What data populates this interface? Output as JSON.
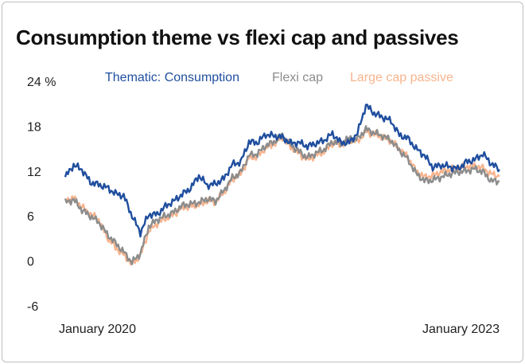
{
  "title": "Consumption theme vs flexi cap and passives",
  "chart_data": {
    "type": "line",
    "title": "Consumption theme vs flexi cap and passives",
    "xlabel": "",
    "ylabel": "",
    "y_unit": "%",
    "ylim": [
      -6,
      24
    ],
    "y_ticks": [
      "24 %",
      "18",
      "12",
      "6",
      "0",
      "-6"
    ],
    "x_tick_labels": [
      "January 2020",
      "January 2023"
    ],
    "x_range": [
      "2019-05",
      "2023-09"
    ],
    "grid": false,
    "legend_position": "top",
    "x": [
      "2019-05",
      "2019-06",
      "2019-07",
      "2019-08",
      "2019-09",
      "2019-10",
      "2019-11",
      "2019-12",
      "2020-01",
      "2020-02",
      "2020-03",
      "2020-04",
      "2020-05",
      "2020-06",
      "2020-07",
      "2020-08",
      "2020-09",
      "2020-10",
      "2020-11",
      "2020-12",
      "2021-01",
      "2021-02",
      "2021-03",
      "2021-04",
      "2021-05",
      "2021-06",
      "2021-07",
      "2021-08",
      "2021-09",
      "2021-10",
      "2021-11",
      "2021-12",
      "2022-01",
      "2022-02",
      "2022-03",
      "2022-04",
      "2022-05",
      "2022-06",
      "2022-07",
      "2022-08",
      "2022-09",
      "2022-10",
      "2022-11",
      "2022-12",
      "2023-01",
      "2023-02",
      "2023-03",
      "2023-04",
      "2023-05",
      "2023-06",
      "2023-07",
      "2023-08",
      "2023-09"
    ],
    "series": [
      {
        "name": "Thematic: Consumption",
        "color": "#1f4e9e",
        "values": [
          11.2,
          12.8,
          12.2,
          10.5,
          10.2,
          9.8,
          9.0,
          8.7,
          6.0,
          3.8,
          6.2,
          6.2,
          7.3,
          8.0,
          8.9,
          9.7,
          11.4,
          10.1,
          10.3,
          11.0,
          12.9,
          13.2,
          15.9,
          15.8,
          16.9,
          16.7,
          16.5,
          15.7,
          15.8,
          15.3,
          15.7,
          16.1,
          17.0,
          15.8,
          15.8,
          17.1,
          20.8,
          19.7,
          19.2,
          18.7,
          16.8,
          16.4,
          15.0,
          14.1,
          12.5,
          12.8,
          12.6,
          12.3,
          13.2,
          13.5,
          14.3,
          13.0,
          12.2
        ]
      },
      {
        "name": "Flexi cap",
        "color": "#8c8c8c",
        "values": [
          7.8,
          8.2,
          6.8,
          6.0,
          5.2,
          3.6,
          2.4,
          1.2,
          -0.2,
          1.0,
          4.6,
          5.5,
          6.0,
          6.5,
          7.4,
          7.6,
          7.8,
          8.3,
          8.0,
          9.4,
          11.1,
          11.8,
          14.1,
          14.3,
          15.4,
          15.9,
          16.8,
          15.5,
          14.6,
          13.8,
          14.4,
          14.9,
          15.9,
          15.7,
          16.4,
          16.3,
          17.6,
          17.1,
          16.7,
          16.1,
          14.8,
          13.6,
          11.7,
          10.7,
          10.8,
          11.2,
          11.6,
          11.9,
          12.0,
          12.3,
          11.9,
          10.7,
          10.6
        ]
      },
      {
        "name": "Large cap passive",
        "color": "#f7b48e",
        "values": [
          8.1,
          8.4,
          7.2,
          6.3,
          5.5,
          3.2,
          1.8,
          0.8,
          -0.4,
          0.7,
          4.0,
          5.0,
          5.7,
          6.2,
          7.1,
          7.3,
          7.5,
          8.0,
          7.9,
          9.2,
          10.9,
          11.6,
          13.8,
          13.9,
          15.1,
          15.6,
          16.5,
          15.2,
          14.3,
          13.5,
          14.1,
          14.6,
          15.7,
          15.5,
          16.1,
          16.0,
          17.2,
          16.9,
          16.6,
          16.0,
          15.0,
          13.9,
          12.0,
          11.2,
          11.4,
          11.9,
          12.2,
          12.5,
          12.6,
          12.7,
          12.4,
          11.6,
          11.3
        ]
      }
    ]
  }
}
